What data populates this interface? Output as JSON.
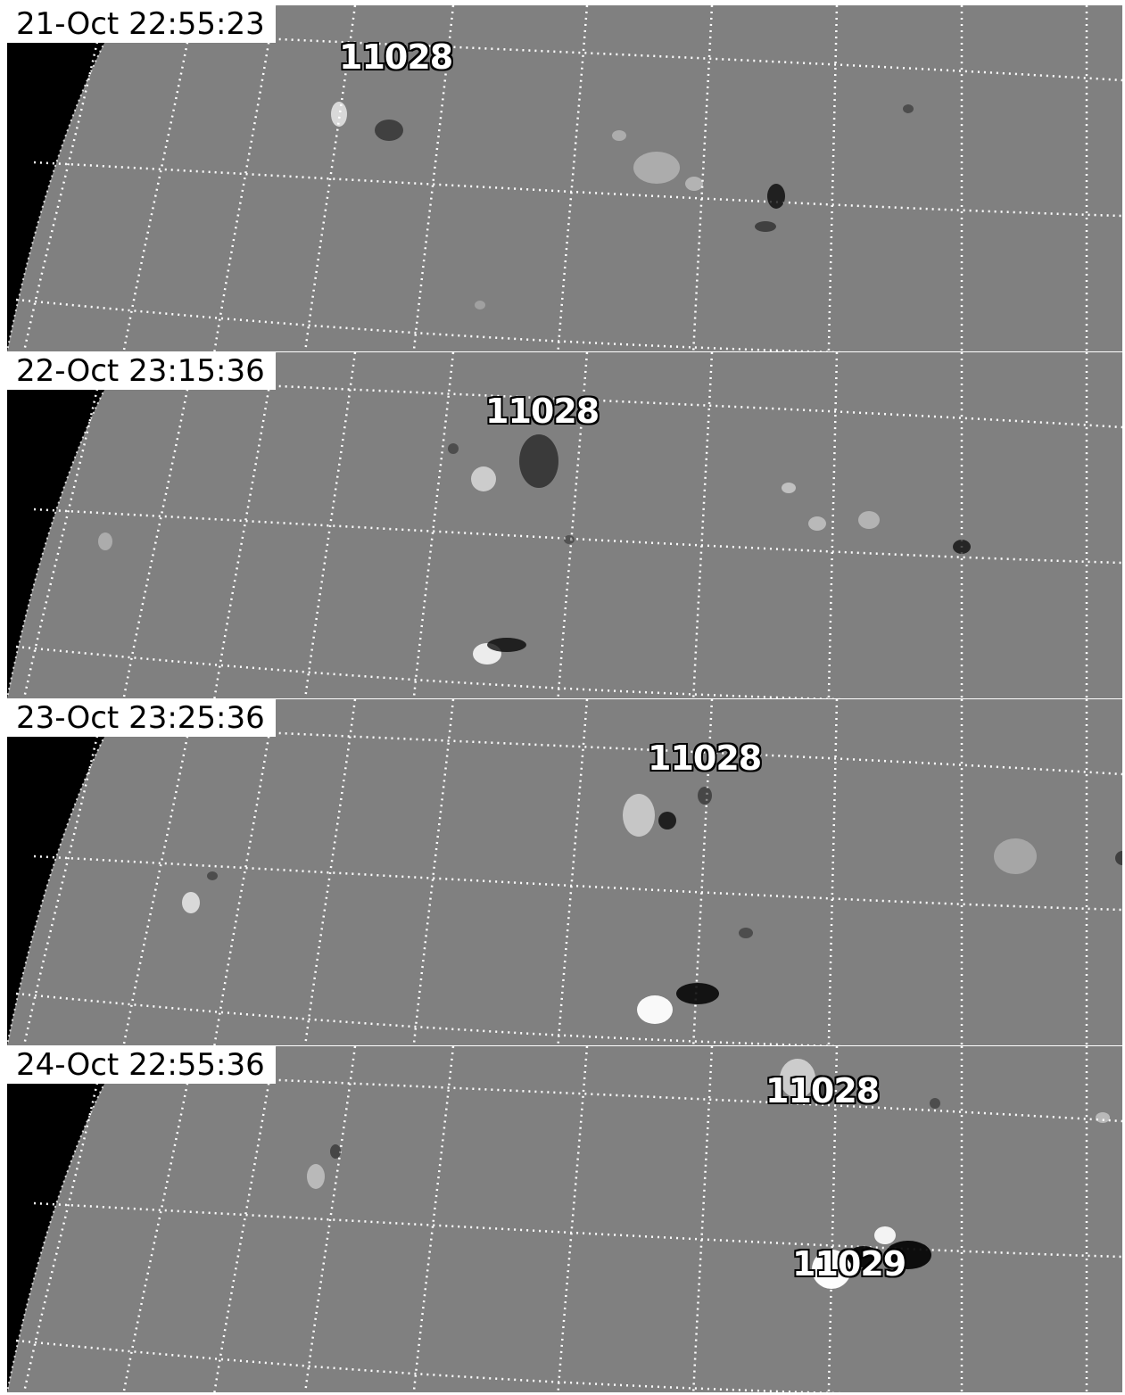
{
  "panels": [
    {
      "timestamp": "21-Oct 22:55:23",
      "labels": [
        "11028"
      ]
    },
    {
      "timestamp": "22-Oct 23:15:36",
      "labels": [
        "11028"
      ]
    },
    {
      "timestamp": "23-Oct 23:25:36",
      "labels": [
        "11028"
      ]
    },
    {
      "timestamp": "24-Oct 22:55:36",
      "labels": [
        "11028",
        "11029"
      ]
    }
  ],
  "colors": {
    "background": "#808080",
    "space": "#000000",
    "grid": "#ffffff",
    "positive_polarity": "#ffffff",
    "negative_polarity": "#000000"
  }
}
